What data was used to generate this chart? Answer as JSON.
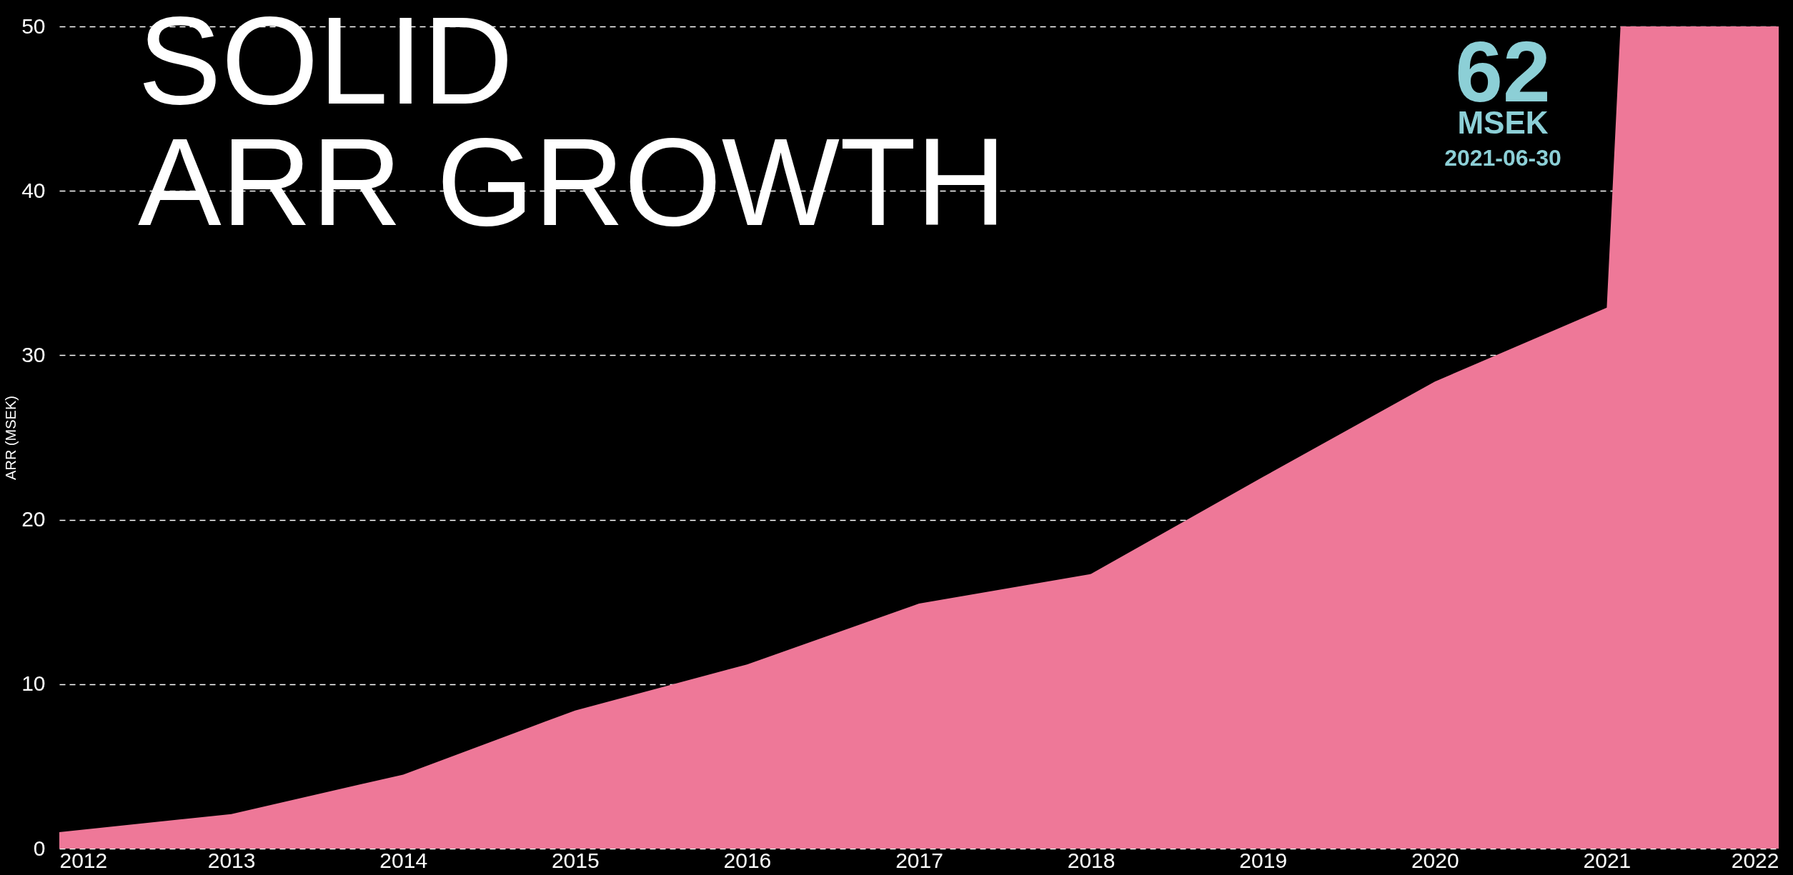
{
  "chart_data": {
    "type": "area",
    "title": "SOLID\nARR GROWTH",
    "ylabel": "ARR (MSEK)",
    "x": [
      2012,
      2013,
      2014,
      2015,
      2016,
      2017,
      2018,
      2019,
      2020,
      2021,
      2021.08,
      2022
    ],
    "series": [
      {
        "color": "#ee7898",
        "values": [
          1.0,
          2.1,
          4.5,
          8.4,
          11.2,
          14.9,
          16.7,
          22.6,
          28.4,
          32.9,
          50,
          50
        ]
      }
    ],
    "xlim": [
      2012,
      2022
    ],
    "xticks": [
      2012,
      2013,
      2014,
      2015,
      2016,
      2017,
      2018,
      2019,
      2020,
      2021,
      2022
    ],
    "ylim": [
      0,
      50
    ],
    "yticks": [
      0,
      10,
      20,
      30,
      40,
      50
    ],
    "grid": "y",
    "line_style": "dashed",
    "legend": false,
    "annotations": [
      "62",
      "MSEK",
      "2021-06-30"
    ]
  }
}
